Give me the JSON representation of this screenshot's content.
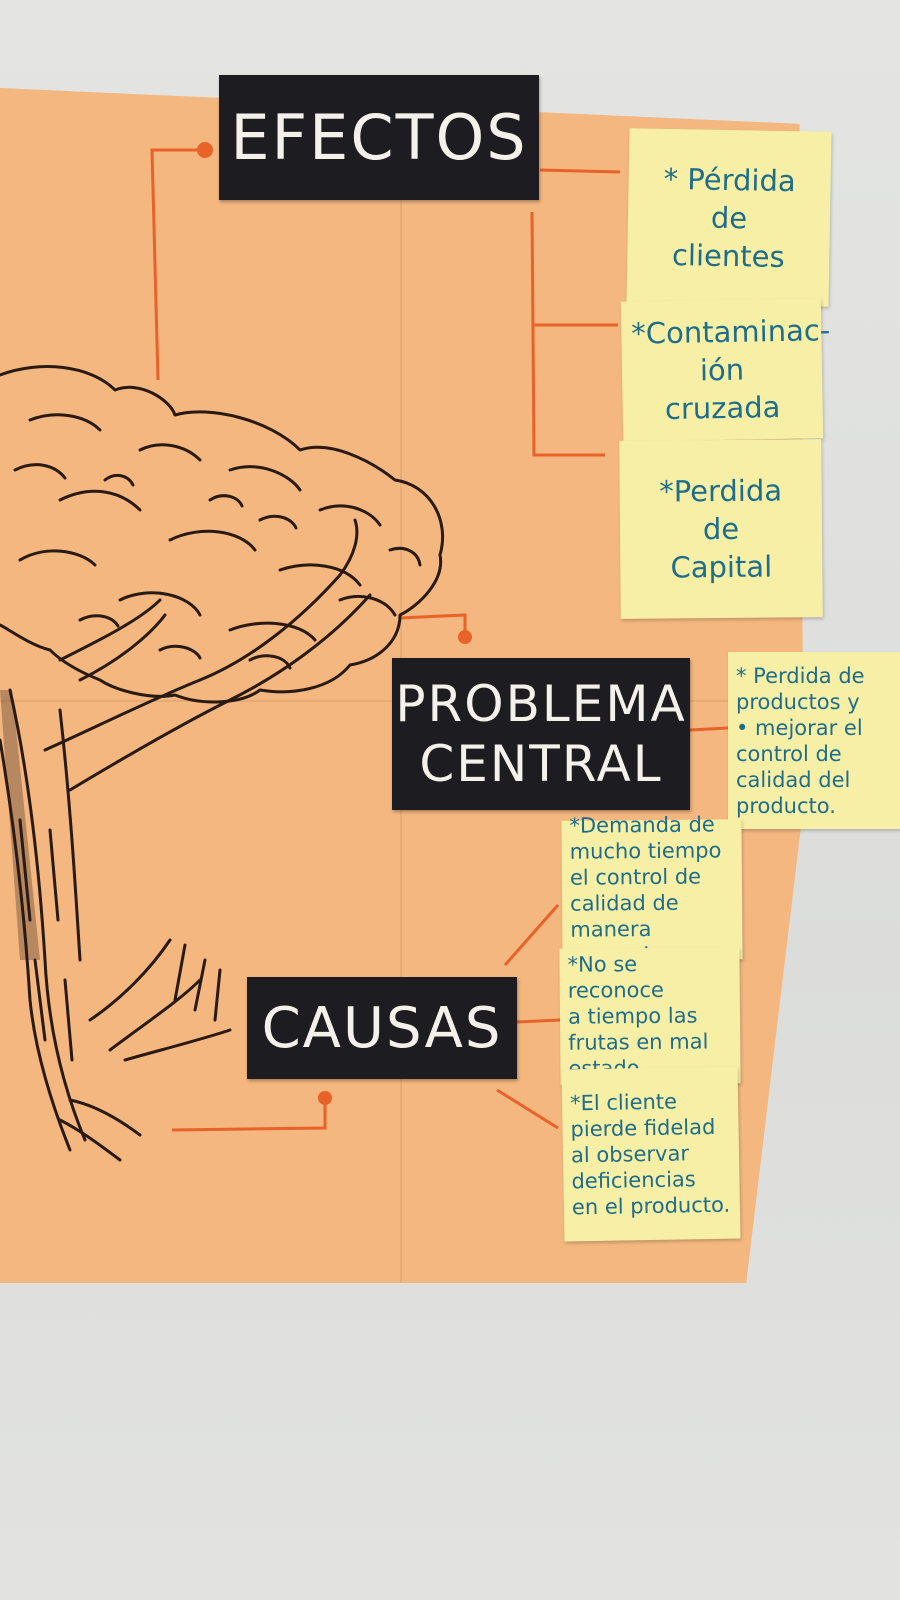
{
  "titles": {
    "efectos": "EFECTOS",
    "problema_line1": "PROBLEMA",
    "problema_line2": "CENTRAL",
    "causas": "CAUSAS"
  },
  "efectos_notes": [
    "* Pérdida\nde\nclientes",
    "*Contaminac-\nión\ncruzada",
    "*Perdida\nde\nCapital"
  ],
  "problema_note": "* Perdida de\nproductos y\n• mejorar el\ncontrol de\ncalidad del\nproducto.",
  "causas_notes": [
    "*Demanda de\nmucho tiempo\nel control de\ncalidad de\nmanera manual",
    "*No se reconoce\na tiempo las\nfrutas en mal\nestado",
    "*El cliente\npierde fidelad\nal observar\ndeficiencias\nen el producto."
  ],
  "colors": {
    "poster": "#f3b77f",
    "title_bg": "#1d1d21",
    "note_bg": "#f7efa6",
    "note_ink": "#1e6d8a",
    "connector": "#e8622a",
    "tree_ink": "#2a1a14"
  }
}
